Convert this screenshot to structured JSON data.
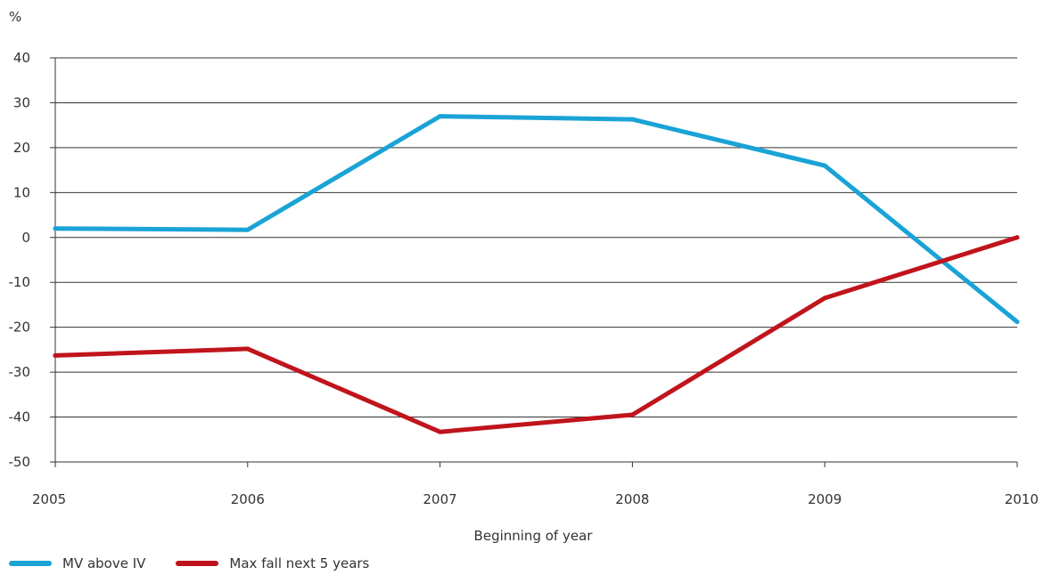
{
  "chart_data": {
    "type": "line",
    "ylabel": "%",
    "xlabel": "Beginning of year",
    "x": [
      2005,
      2006,
      2007,
      2008,
      2009,
      2010
    ],
    "x_tick_labels": [
      "2005",
      "2006",
      "2007",
      "2008",
      "2009",
      "2010"
    ],
    "y_tick_labels": [
      "40",
      "30",
      "20",
      "10",
      "0",
      "-10",
      "-20",
      "-30",
      "-40",
      "-50"
    ],
    "ylim": [
      -50,
      40
    ],
    "xlim": [
      2005,
      2010
    ],
    "grid": "horizontal",
    "legend_position": "bottom-left",
    "series": [
      {
        "name": "MV above IV",
        "color": "#1aa3d6",
        "values": [
          2.0,
          1.7,
          27.0,
          26.3,
          16.0,
          -18.8
        ]
      },
      {
        "name": "Max fall next 5 years",
        "color": "#c0141c",
        "values": [
          -26.3,
          -24.8,
          -43.3,
          -39.5,
          -13.5,
          0.0
        ]
      }
    ]
  }
}
